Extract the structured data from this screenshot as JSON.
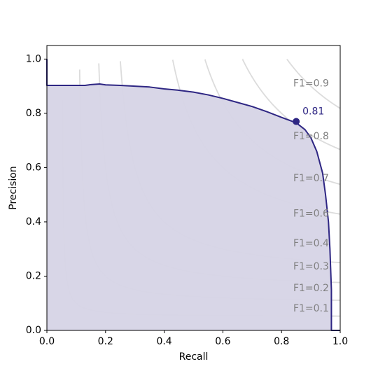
{
  "chart_data": {
    "type": "area",
    "title": "",
    "xlabel": "Recall",
    "ylabel": "Precision",
    "xlim": [
      0.0,
      1.0
    ],
    "ylim": [
      0.0,
      1.05
    ],
    "x_ticks": [
      "0.0",
      "0.2",
      "0.4",
      "0.6",
      "0.8",
      "1.0"
    ],
    "y_ticks": [
      "0.0",
      "0.2",
      "0.4",
      "0.6",
      "0.8",
      "1.0"
    ],
    "grid": false,
    "legend": "none",
    "colors": {
      "curve": "#2e2683",
      "fill": "#d6d4e6",
      "iso_line": "#dcdcdc",
      "iso_label": "#808080"
    },
    "series": [
      {
        "x": [
          0.0,
          0.0,
          0.03,
          0.06,
          0.1,
          0.13,
          0.15,
          0.18,
          0.2,
          0.25,
          0.3,
          0.35,
          0.4,
          0.45,
          0.5,
          0.55,
          0.6,
          0.65,
          0.7,
          0.75,
          0.8,
          0.85,
          0.88,
          0.9,
          0.92,
          0.94,
          0.95,
          0.96,
          0.965,
          0.97,
          0.97,
          1.0
        ],
        "y": [
          1.0,
          0.903,
          0.903,
          0.903,
          0.903,
          0.903,
          0.906,
          0.908,
          0.905,
          0.903,
          0.9,
          0.897,
          0.89,
          0.885,
          0.878,
          0.868,
          0.855,
          0.84,
          0.825,
          0.806,
          0.785,
          0.765,
          0.74,
          0.71,
          0.66,
          0.58,
          0.5,
          0.4,
          0.3,
          0.15,
          0.0,
          0.0
        ]
      }
    ],
    "iso_f1": [
      {
        "f1": 0.1,
        "label": "F1=0.1",
        "label_y": 0.08
      },
      {
        "f1": 0.2,
        "label": "F1=0.2",
        "label_y": 0.155
      },
      {
        "f1": 0.3,
        "label": "F1=0.3",
        "label_y": 0.235
      },
      {
        "f1": 0.4,
        "label": "F1=0.4",
        "label_y": 0.32
      },
      {
        "f1": 0.6,
        "label": "F1=0.6",
        "label_y": 0.43
      },
      {
        "f1": 0.7,
        "label": "F1=0.7",
        "label_y": 0.56
      },
      {
        "f1": 0.8,
        "label": "F1=0.8",
        "label_y": 0.715
      },
      {
        "f1": 0.9,
        "label": "F1=0.9",
        "label_y": 0.91
      }
    ],
    "iso_label_x": 0.84,
    "best_point": {
      "x": 0.85,
      "y": 0.77,
      "label": "0.81"
    }
  }
}
